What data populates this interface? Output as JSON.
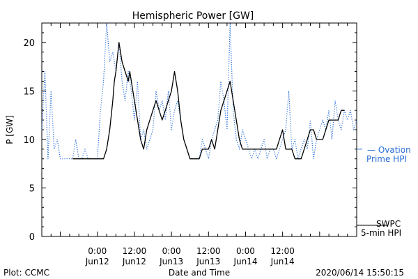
{
  "chart_data": {
    "type": "line",
    "title": "Hemispheric Power [GW]",
    "xlabel": "Date and Time",
    "ylabel": "P [GW]",
    "ylim": [
      0,
      22
    ],
    "yticks": [
      0,
      5,
      10,
      15,
      20
    ],
    "xlim_hours": [
      -18,
      84
    ],
    "x_ticks": [
      {
        "label": "0:00",
        "date": "Jun12"
      },
      {
        "label": "12:00",
        "date": "Jun12"
      },
      {
        "label": "0:00",
        "date": "Jun13"
      },
      {
        "label": "12:00",
        "date": "Jun13"
      },
      {
        "label": "0:00",
        "date": "Jun14"
      },
      {
        "label": "12:00",
        "date": "Jun14"
      }
    ],
    "series": [
      {
        "name_lines": [
          "SWPC",
          "5-min HPI"
        ],
        "color": "#000000",
        "style": "solid",
        "x": [
          -8,
          -7,
          -5,
          -3,
          -2,
          -1,
          0,
          1,
          2,
          3,
          4,
          5,
          5.5,
          6,
          7,
          8,
          9,
          10,
          10.5,
          11,
          11.5,
          12,
          13,
          14,
          15,
          15.5,
          16,
          17,
          18,
          19,
          20,
          21,
          22,
          23,
          24,
          25,
          26,
          27,
          28,
          29,
          30,
          31,
          32,
          33,
          34,
          35,
          36,
          37,
          38,
          39,
          40,
          41,
          42,
          43,
          44,
          45,
          46,
          47,
          48,
          49,
          50,
          51,
          52,
          53,
          54,
          55,
          56,
          57,
          58,
          59,
          60,
          61,
          62,
          63,
          64,
          65,
          66,
          67,
          68,
          69,
          70,
          71,
          72,
          73,
          74,
          75,
          76,
          77,
          78,
          79,
          80
        ],
        "y": [
          8,
          8,
          8,
          8,
          8,
          8,
          8,
          8,
          8,
          9,
          11,
          14,
          16,
          17,
          20,
          18,
          17,
          16,
          17,
          16,
          15,
          14,
          12,
          10,
          9,
          10,
          11,
          12,
          13,
          14,
          13,
          12,
          13,
          14,
          15,
          17,
          15,
          12,
          10,
          9,
          8,
          8,
          8,
          8,
          9,
          9,
          9,
          10,
          9,
          11,
          13,
          14,
          15,
          16,
          14,
          12,
          10,
          9,
          9,
          9,
          9,
          9,
          9,
          9,
          9,
          9,
          9,
          9,
          9,
          10,
          11,
          9,
          9,
          9,
          8,
          8,
          8,
          9,
          10,
          11,
          11,
          10,
          10,
          10,
          11,
          12,
          12,
          12,
          12,
          13,
          13
        ]
      },
      {
        "name_lines": [
          "— Ovation",
          "Prime HPI"
        ],
        "color": "#2a6fd8",
        "style": "dotted",
        "x": [
          -18,
          -17,
          -16,
          -15,
          -14,
          -13,
          -12,
          -11,
          -10,
          -9,
          -8,
          -7,
          -6,
          -5,
          -4,
          -3,
          -2,
          -1,
          0,
          1,
          2,
          3,
          4,
          5,
          6,
          7,
          8,
          9,
          10,
          11,
          12,
          13,
          14,
          15,
          16,
          17,
          18,
          19,
          20,
          21,
          22,
          23,
          24,
          25,
          26,
          27,
          28,
          29,
          30,
          31,
          32,
          33,
          34,
          35,
          36,
          37,
          38,
          39,
          40,
          41,
          42,
          43,
          44,
          45,
          46,
          47,
          48,
          49,
          50,
          51,
          52,
          53,
          54,
          55,
          56,
          57,
          58,
          59,
          60,
          61,
          62,
          63,
          64,
          65,
          66,
          67,
          68,
          69,
          70,
          71,
          72,
          73,
          74,
          75,
          76,
          77,
          78,
          79,
          80,
          81,
          82,
          83,
          84
        ],
        "y": [
          11,
          17,
          8,
          15,
          9,
          10,
          8,
          8,
          8,
          8,
          8,
          10,
          8,
          8,
          9,
          8,
          8,
          8,
          8,
          13,
          16,
          22,
          18,
          19,
          17,
          20,
          16,
          14,
          17,
          15,
          12,
          16,
          10,
          11,
          9,
          10,
          11,
          15,
          13,
          14,
          12,
          15,
          11,
          13,
          14,
          12,
          10,
          9,
          8,
          8,
          8,
          8,
          10,
          9,
          8,
          10,
          11,
          12,
          16,
          14,
          11,
          22,
          13,
          10,
          9,
          11,
          10,
          9,
          8,
          9,
          8,
          9,
          10,
          8,
          9,
          9,
          8,
          9,
          10,
          11,
          15,
          9,
          10,
          8,
          9,
          10,
          9,
          12,
          8,
          10,
          11,
          12,
          11,
          13,
          10,
          14,
          12,
          11,
          13,
          12,
          13,
          11,
          12
        ]
      }
    ]
  },
  "footer": {
    "left": "Plot: CCMC",
    "center": "Date and Time",
    "right": "2020/06/14 15:50:15"
  }
}
